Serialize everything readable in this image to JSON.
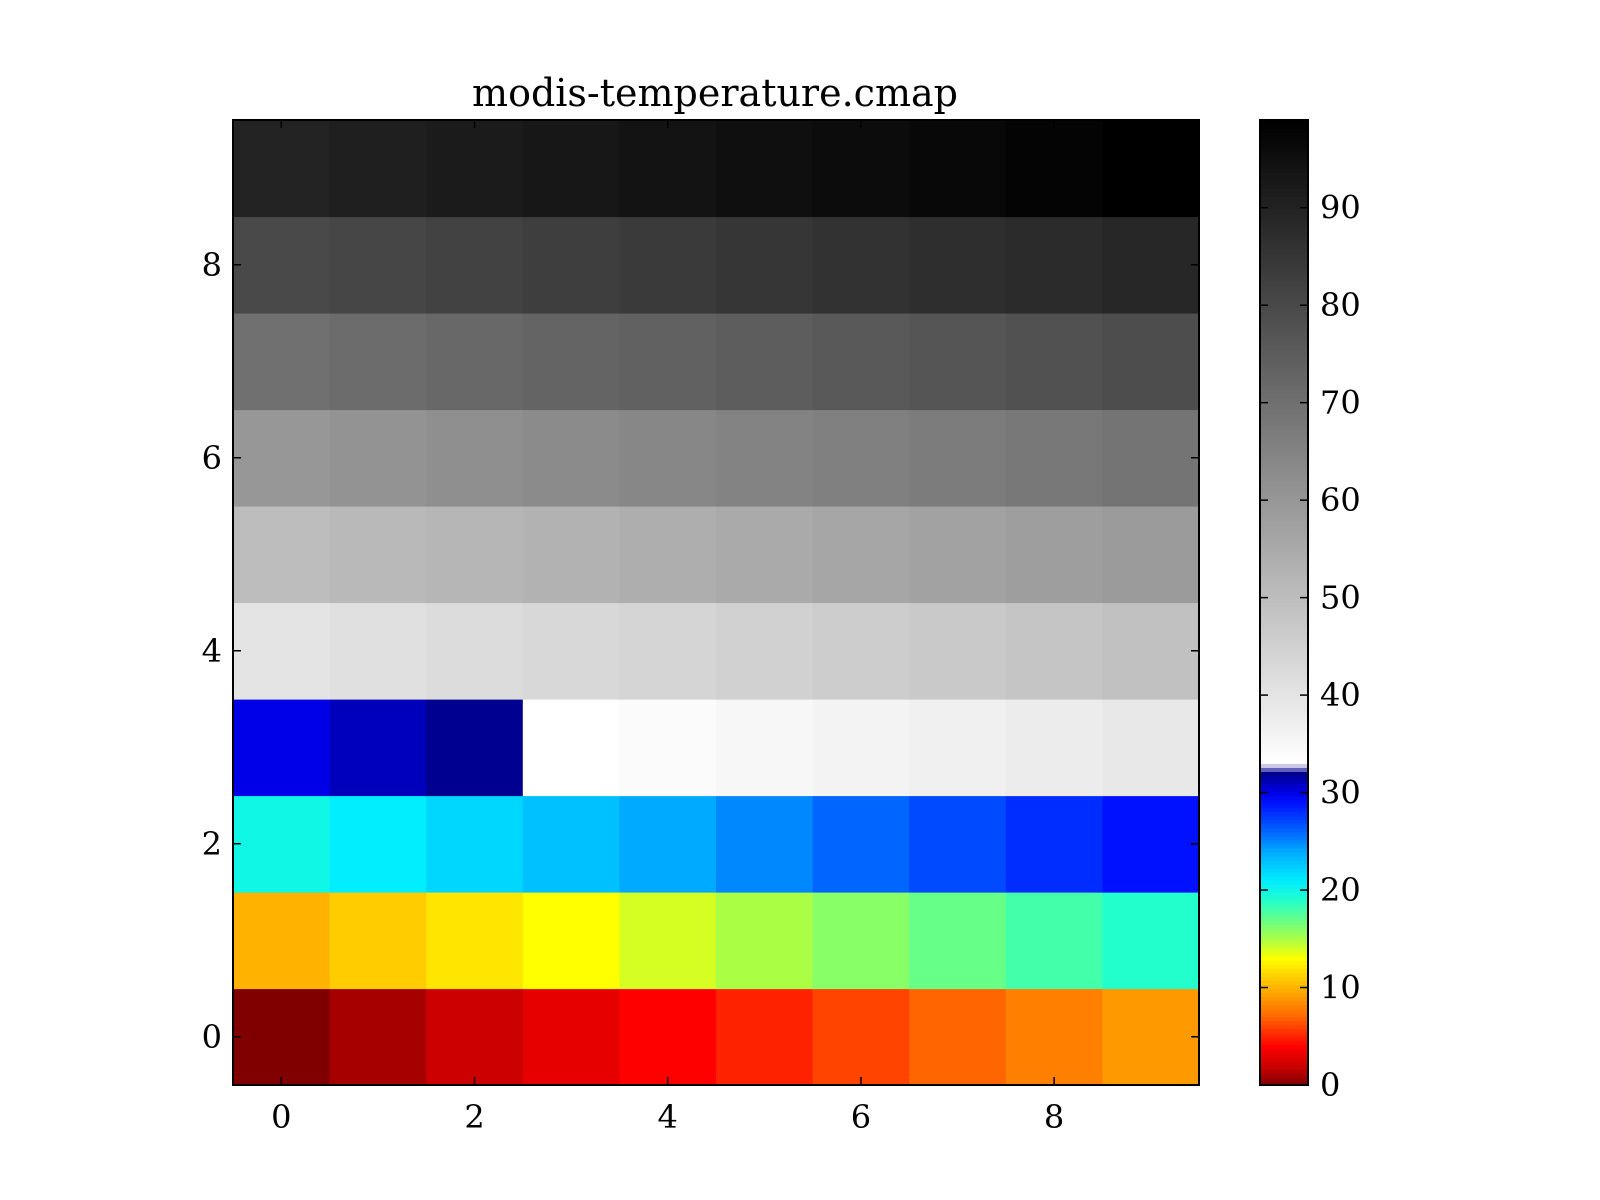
{
  "chart_data": {
    "type": "heatmap",
    "title": "modis-temperature.cmap",
    "xlabel": "",
    "ylabel": "",
    "x_ticks": [
      "0",
      "2",
      "4",
      "6",
      "8"
    ],
    "y_ticks": [
      "0",
      "2",
      "4",
      "6",
      "8"
    ],
    "xlim": [
      -0.5,
      9.5
    ],
    "ylim": [
      -0.5,
      9.5
    ],
    "origin": "lower",
    "values": [
      [
        0,
        1,
        2,
        3,
        4,
        5,
        6,
        7,
        8,
        9
      ],
      [
        10,
        11,
        12,
        13,
        14,
        15,
        16,
        17,
        18,
        19
      ],
      [
        20,
        21,
        22,
        23,
        24,
        25,
        26,
        27,
        28,
        29
      ],
      [
        30,
        31,
        32,
        33,
        34,
        35,
        36,
        37,
        38,
        39
      ],
      [
        40,
        41,
        42,
        43,
        44,
        45,
        46,
        47,
        48,
        49
      ],
      [
        50,
        51,
        52,
        53,
        54,
        55,
        56,
        57,
        58,
        59
      ],
      [
        60,
        61,
        62,
        63,
        64,
        65,
        66,
        67,
        68,
        69
      ],
      [
        70,
        71,
        72,
        73,
        74,
        75,
        76,
        77,
        78,
        79
      ],
      [
        80,
        81,
        82,
        83,
        84,
        85,
        86,
        87,
        88,
        89
      ],
      [
        90,
        91,
        92,
        93,
        94,
        95,
        96,
        97,
        98,
        99
      ]
    ],
    "colorbar": {
      "range": [
        0,
        99
      ],
      "ticks": [
        "0",
        "10",
        "20",
        "30",
        "40",
        "50",
        "60",
        "70",
        "80",
        "90"
      ],
      "colormap": [
        {
          "value": 0,
          "color": "#800000"
        },
        {
          "value": 2,
          "color": "#cc0000"
        },
        {
          "value": 4,
          "color": "#ff0000"
        },
        {
          "value": 7,
          "color": "#ff6600"
        },
        {
          "value": 9,
          "color": "#ff9900"
        },
        {
          "value": 11,
          "color": "#ffcc00"
        },
        {
          "value": 13,
          "color": "#ffff00"
        },
        {
          "value": 15,
          "color": "#aaff44"
        },
        {
          "value": 17,
          "color": "#66ff88"
        },
        {
          "value": 19,
          "color": "#22ffcc"
        },
        {
          "value": 21,
          "color": "#00eeff"
        },
        {
          "value": 24,
          "color": "#00aaff"
        },
        {
          "value": 26,
          "color": "#0066ff"
        },
        {
          "value": 29,
          "color": "#0011ff"
        },
        {
          "value": 30,
          "color": "#0000e8"
        },
        {
          "value": 32,
          "color": "#000090"
        },
        {
          "value": 33,
          "color": "#ffffff"
        },
        {
          "value": 99,
          "color": "#000000"
        }
      ]
    }
  }
}
